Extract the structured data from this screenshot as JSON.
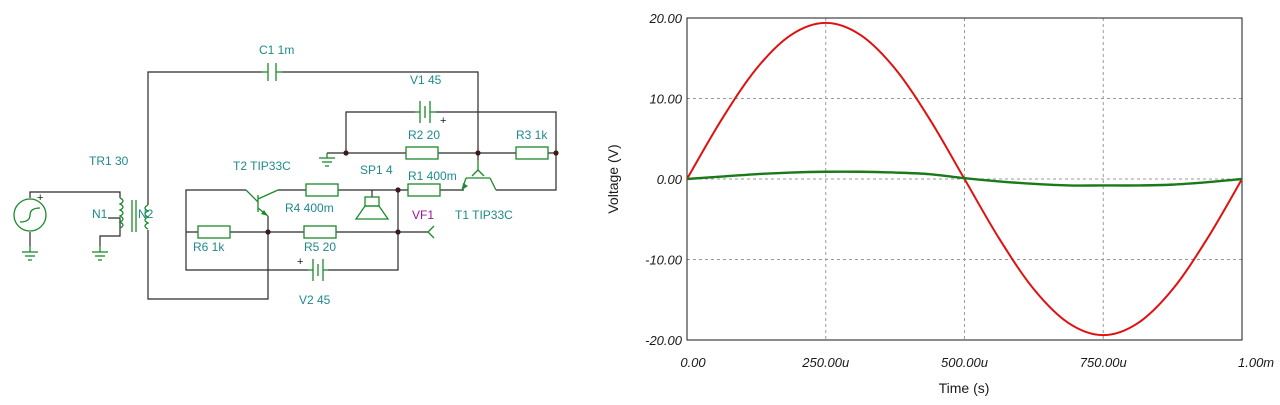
{
  "schematic": {
    "labels": {
      "c1": "C1 1m",
      "v1": "V1 45",
      "tr1": "TR1 30",
      "n1": "N1",
      "n2": "N2",
      "r2": "R2 20",
      "r3": "R3 1k",
      "t2": "T2 TIP33C",
      "sp1": "SP1 4",
      "r1": "R1 400m",
      "r4": "R4 400m",
      "vf1": "VF1",
      "t1": "T1 TIP33C",
      "r6": "R6 1k",
      "r5": "R5 20",
      "v2": "V2 45",
      "plus": "+"
    }
  },
  "chart_data": {
    "type": "line",
    "xlabel": "Time (s)",
    "ylabel": "Voltage (V)",
    "xlim": [
      0,
      0.001
    ],
    "ylim": [
      -20,
      20
    ],
    "grid": true,
    "xticks": [
      0,
      0.00025,
      0.0005,
      0.00075,
      0.001
    ],
    "xtick_labels": [
      "0.00",
      "250.00u",
      "500.00u",
      "750.00u",
      "1.00m"
    ],
    "yticks": [
      20,
      10,
      0,
      -10,
      -20
    ],
    "ytick_labels": [
      "20.00",
      "10.00",
      "0.00",
      "-10.00",
      "-20.00"
    ],
    "x": [
      0,
      6.25e-05,
      0.000125,
      0.0001875,
      0.00025,
      0.0003125,
      0.000375,
      0.0004375,
      0.0005,
      0.0005625,
      0.000625,
      0.0006875,
      0.00075,
      0.0008125,
      0.000875,
      0.0009375,
      0.001
    ],
    "series": [
      {
        "color": "#e01010",
        "values": [
          0,
          7.4,
          13.7,
          17.9,
          19.4,
          17.9,
          13.7,
          7.4,
          0,
          -7.4,
          -13.7,
          -17.9,
          -19.4,
          -17.9,
          -13.7,
          -7.4,
          0
        ]
      },
      {
        "color": "#1a7a1a",
        "values": [
          0,
          0.3,
          0.6,
          0.8,
          0.9,
          0.9,
          0.8,
          0.6,
          0.1,
          -0.3,
          -0.6,
          -0.8,
          -0.8,
          -0.8,
          -0.7,
          -0.4,
          0
        ]
      }
    ]
  }
}
